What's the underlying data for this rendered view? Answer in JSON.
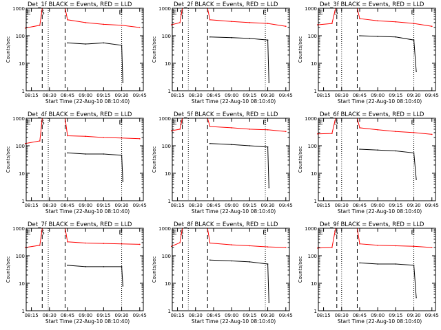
{
  "chart_data": [
    {
      "type": "line",
      "title": "Det_1f BLACK = Events, RED = LLD",
      "xlabel": "Start Time (22-Aug-10 08:10:40)",
      "ylabel": "Counts/sec",
      "yscale": "log",
      "ylim": [
        1,
        1000
      ],
      "xlim": [
        "08:10:40",
        "09:48:00"
      ],
      "x_ticks": [
        "08:15",
        "08:30",
        "08:45",
        "09:00",
        "09:15",
        "09:30",
        "09:45"
      ],
      "y_ticks": [
        "1",
        "10",
        "100",
        "1000"
      ],
      "markers": [
        {
          "label": "S",
          "time": "08:25"
        },
        {
          "label": "E",
          "time": "09:30"
        }
      ],
      "dashed_lines": [
        "08:24",
        "08:43"
      ],
      "dotted_lines": [
        "08:29",
        "09:30"
      ],
      "series": [
        {
          "name": "LLD",
          "color": "#ff0000",
          "x": [
            "08:10",
            "08:22",
            "08:24",
            "08:43",
            "08:45",
            "09:00",
            "09:15",
            "09:30",
            "09:45"
          ],
          "y": [
            190,
            240,
            1000,
            1000,
            380,
            300,
            260,
            240,
            200
          ]
        },
        {
          "name": "Events",
          "color": "#000000",
          "x": [
            "08:45",
            "09:00",
            "09:15",
            "09:30",
            "09:31"
          ],
          "y": [
            55,
            50,
            55,
            45,
            2
          ]
        }
      ]
    },
    {
      "type": "line",
      "title": "Det_2f BLACK = Events, RED = LLD",
      "xlabel": "Start Time (22-Aug-10 08:10:40)",
      "ylabel": "Counts/sec",
      "yscale": "log",
      "ylim": [
        1,
        1000
      ],
      "xlim": [
        "08:10:40",
        "09:48:00"
      ],
      "x_ticks": [
        "08:15",
        "08:30",
        "08:45",
        "09:00",
        "09:15",
        "09:30",
        "09:45"
      ],
      "y_ticks": [
        "1",
        "10",
        "100",
        "1000"
      ],
      "markers": [
        {
          "label": "S",
          "time": "08:19"
        },
        {
          "label": "E",
          "time": "09:28"
        }
      ],
      "dashed_lines": [
        "08:19",
        "08:40"
      ],
      "dotted_lines": [
        "08:24",
        "09:28"
      ],
      "series": [
        {
          "name": "LLD",
          "color": "#ff0000",
          "x": [
            "08:10",
            "08:17",
            "08:19",
            "08:40",
            "08:42",
            "09:00",
            "09:15",
            "09:30",
            "09:45"
          ],
          "y": [
            250,
            300,
            1000,
            1000,
            380,
            330,
            300,
            280,
            220
          ]
        },
        {
          "name": "Events",
          "color": "#000000",
          "x": [
            "08:42",
            "09:00",
            "09:15",
            "09:30",
            "09:31"
          ],
          "y": [
            90,
            85,
            80,
            70,
            2
          ]
        }
      ]
    },
    {
      "type": "line",
      "title": "Det_3f BLACK = Events, RED = LLD",
      "xlabel": "Start Time (22-Aug-10 08:10:40)",
      "ylabel": "Counts/sec",
      "yscale": "log",
      "ylim": [
        1,
        1000
      ],
      "xlim": [
        "08:10:40",
        "09:48:00"
      ],
      "x_ticks": [
        "08:15",
        "08:30",
        "08:45",
        "09:00",
        "09:15",
        "09:30",
        "09:45"
      ],
      "y_ticks": [
        "1",
        "10",
        "100",
        "1000"
      ],
      "markers": [
        {
          "label": "S",
          "time": "08:26"
        },
        {
          "label": "E",
          "time": "09:30"
        }
      ],
      "dashed_lines": [
        "08:26",
        "08:43"
      ],
      "dotted_lines": [
        "08:30",
        "09:30"
      ],
      "series": [
        {
          "name": "LLD",
          "color": "#ff0000",
          "x": [
            "08:10",
            "08:22",
            "08:25",
            "08:43",
            "08:45",
            "09:00",
            "09:15",
            "09:30",
            "09:45"
          ],
          "y": [
            250,
            280,
            1000,
            1000,
            420,
            350,
            320,
            280,
            220
          ]
        },
        {
          "name": "Events",
          "color": "#000000",
          "x": [
            "08:45",
            "09:00",
            "09:15",
            "09:30",
            "09:32"
          ],
          "y": [
            100,
            95,
            90,
            70,
            5
          ]
        }
      ]
    },
    {
      "type": "line",
      "title": "Det_4f BLACK = Events, RED = LLD",
      "xlabel": "Start Time (22-Aug-10 08:10:40)",
      "ylabel": "Counts/sec",
      "yscale": "log",
      "ylim": [
        1,
        1000
      ],
      "xlim": [
        "08:10:40",
        "09:48:00"
      ],
      "x_ticks": [
        "08:15",
        "08:30",
        "08:45",
        "09:00",
        "09:15",
        "09:30",
        "09:45"
      ],
      "y_ticks": [
        "1",
        "10",
        "100",
        "1000"
      ],
      "markers": [
        {
          "label": "S",
          "time": "08:25"
        },
        {
          "label": "E",
          "time": "09:30"
        }
      ],
      "dashed_lines": [
        "08:24",
        "08:43"
      ],
      "dotted_lines": [
        "08:29",
        "09:30"
      ],
      "series": [
        {
          "name": "LLD",
          "color": "#ff0000",
          "x": [
            "08:10",
            "08:22",
            "08:24",
            "08:43",
            "08:45",
            "09:00",
            "09:15",
            "09:30",
            "09:45"
          ],
          "y": [
            120,
            150,
            1000,
            1000,
            230,
            220,
            200,
            190,
            180
          ]
        },
        {
          "name": "Events",
          "color": "#000000",
          "x": [
            "08:45",
            "09:00",
            "09:15",
            "09:30",
            "09:31"
          ],
          "y": [
            55,
            50,
            50,
            45,
            5
          ]
        }
      ]
    },
    {
      "type": "line",
      "title": "Det_5f BLACK = Events, RED = LLD",
      "xlabel": "Start Time (22-Aug-10 08:10:40)",
      "ylabel": "Counts/sec",
      "yscale": "log",
      "ylim": [
        1,
        1000
      ],
      "xlim": [
        "08:10:40",
        "09:48:00"
      ],
      "x_ticks": [
        "08:15",
        "08:30",
        "08:45",
        "09:00",
        "09:15",
        "09:30",
        "09:45"
      ],
      "y_ticks": [
        "1",
        "10",
        "100",
        "1000"
      ],
      "markers": [
        {
          "label": "S",
          "time": "08:19"
        },
        {
          "label": "E",
          "time": "09:28"
        }
      ],
      "dashed_lines": [
        "08:19",
        "08:40"
      ],
      "dotted_lines": [
        "08:24",
        "09:28"
      ],
      "series": [
        {
          "name": "LLD",
          "color": "#ff0000",
          "x": [
            "08:10",
            "08:17",
            "08:19",
            "08:40",
            "08:42",
            "09:00",
            "09:15",
            "09:30",
            "09:45"
          ],
          "y": [
            350,
            400,
            1000,
            1000,
            500,
            450,
            400,
            380,
            330
          ]
        },
        {
          "name": "Events",
          "color": "#000000",
          "x": [
            "08:42",
            "09:00",
            "09:15",
            "09:30",
            "09:31"
          ],
          "y": [
            120,
            110,
            100,
            90,
            3
          ]
        }
      ]
    },
    {
      "type": "line",
      "title": "Det_6f BLACK = Events, RED = LLD",
      "xlabel": "Start Time (22-Aug-10 08:10:40)",
      "ylabel": "Counts/sec",
      "yscale": "log",
      "ylim": [
        1,
        1000
      ],
      "xlim": [
        "08:10:40",
        "09:48:00"
      ],
      "x_ticks": [
        "08:15",
        "08:30",
        "08:45",
        "09:00",
        "09:15",
        "09:30",
        "09:45"
      ],
      "y_ticks": [
        "1",
        "10",
        "100",
        "1000"
      ],
      "markers": [
        {
          "label": "S",
          "time": "08:26"
        },
        {
          "label": "E",
          "time": "09:30"
        }
      ],
      "dashed_lines": [
        "08:26",
        "08:43"
      ],
      "dotted_lines": [
        "08:30",
        "09:30"
      ],
      "series": [
        {
          "name": "LLD",
          "color": "#ff0000",
          "x": [
            "08:10",
            "08:22",
            "08:25",
            "08:43",
            "08:45",
            "09:00",
            "09:15",
            "09:30",
            "09:45"
          ],
          "y": [
            270,
            280,
            1000,
            1000,
            450,
            380,
            330,
            300,
            260
          ]
        },
        {
          "name": "Events",
          "color": "#000000",
          "x": [
            "08:45",
            "09:00",
            "09:15",
            "09:30",
            "09:32"
          ],
          "y": [
            75,
            70,
            65,
            55,
            6
          ]
        }
      ]
    },
    {
      "type": "line",
      "title": "Det_7f BLACK = Events, RED = LLD",
      "xlabel": "Start Time (22-Aug-10 08:10:40)",
      "ylabel": "Counts/sec",
      "yscale": "log",
      "ylim": [
        1,
        1000
      ],
      "xlim": [
        "08:10:40",
        "09:48:00"
      ],
      "x_ticks": [
        "08:15",
        "08:30",
        "08:45",
        "09:00",
        "09:15",
        "09:30",
        "09:45"
      ],
      "y_ticks": [
        "1",
        "10",
        "100",
        "1000"
      ],
      "markers": [
        {
          "label": "S",
          "time": "08:25"
        },
        {
          "label": "E",
          "time": "09:30"
        }
      ],
      "dashed_lines": [
        "08:24",
        "08:43"
      ],
      "dotted_lines": [
        "08:29",
        "09:30"
      ],
      "series": [
        {
          "name": "LLD",
          "color": "#ff0000",
          "x": [
            "08:10",
            "08:22",
            "08:24",
            "08:43",
            "08:45",
            "09:00",
            "09:15",
            "09:30",
            "09:45"
          ],
          "y": [
            200,
            240,
            1000,
            1000,
            320,
            290,
            280,
            270,
            260
          ]
        },
        {
          "name": "Events",
          "color": "#000000",
          "x": [
            "08:45",
            "09:00",
            "09:15",
            "09:30",
            "09:31"
          ],
          "y": [
            45,
            40,
            40,
            40,
            8
          ]
        }
      ]
    },
    {
      "type": "line",
      "title": "Det_8f BLACK = Events, RED = LLD",
      "xlabel": "Start Time (22-Aug-10 08:10:40)",
      "ylabel": "Counts/sec",
      "yscale": "log",
      "ylim": [
        1,
        1000
      ],
      "xlim": [
        "08:10:40",
        "09:48:00"
      ],
      "x_ticks": [
        "08:15",
        "08:30",
        "08:45",
        "09:00",
        "09:15",
        "09:30",
        "09:45"
      ],
      "y_ticks": [
        "1",
        "10",
        "100",
        "1000"
      ],
      "markers": [
        {
          "label": "S",
          "time": "08:19"
        },
        {
          "label": "E",
          "time": "09:28"
        }
      ],
      "dashed_lines": [
        "08:19",
        "08:40"
      ],
      "dotted_lines": [
        "08:24",
        "09:28"
      ],
      "series": [
        {
          "name": "LLD",
          "color": "#ff0000",
          "x": [
            "08:10",
            "08:17",
            "08:19",
            "08:40",
            "08:42",
            "09:00",
            "09:15",
            "09:30",
            "09:45"
          ],
          "y": [
            220,
            300,
            1000,
            1000,
            290,
            250,
            230,
            210,
            200
          ]
        },
        {
          "name": "Events",
          "color": "#000000",
          "x": [
            "08:42",
            "09:00",
            "09:15",
            "09:30",
            "09:31"
          ],
          "y": [
            70,
            65,
            60,
            50,
            2
          ]
        }
      ]
    },
    {
      "type": "line",
      "title": "Det_9f BLACK = Events, RED = LLD",
      "xlabel": "Start Time (22-Aug-10 08:10:40)",
      "ylabel": "Counts/sec",
      "yscale": "log",
      "ylim": [
        1,
        1000
      ],
      "xlim": [
        "08:10:40",
        "09:48:00"
      ],
      "x_ticks": [
        "08:15",
        "08:30",
        "08:45",
        "09:00",
        "09:15",
        "09:30",
        "09:45"
      ],
      "y_ticks": [
        "1",
        "10",
        "100",
        "1000"
      ],
      "markers": [
        {
          "label": "S",
          "time": "08:26"
        },
        {
          "label": "E",
          "time": "09:30"
        }
      ],
      "dashed_lines": [
        "08:26",
        "08:43"
      ],
      "dotted_lines": [
        "08:30",
        "09:30"
      ],
      "series": [
        {
          "name": "LLD",
          "color": "#ff0000",
          "x": [
            "08:10",
            "08:22",
            "08:25",
            "08:43",
            "08:45",
            "09:00",
            "09:15",
            "09:30",
            "09:45"
          ],
          "y": [
            190,
            200,
            1000,
            1000,
            270,
            240,
            230,
            220,
            200
          ]
        },
        {
          "name": "Events",
          "color": "#000000",
          "x": [
            "08:45",
            "09:00",
            "09:15",
            "09:30",
            "09:32"
          ],
          "y": [
            55,
            50,
            50,
            45,
            3
          ]
        }
      ]
    }
  ]
}
